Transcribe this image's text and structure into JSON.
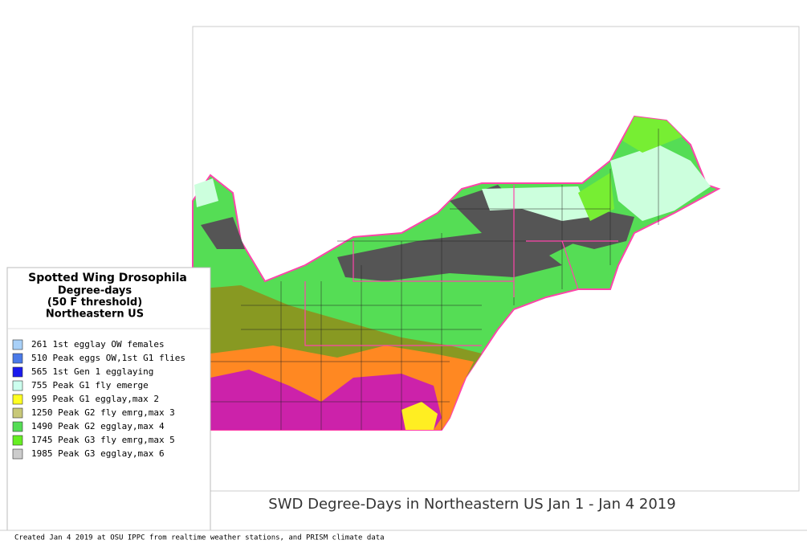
{
  "legend": {
    "title": "Spotted Wing Drosophila",
    "subtitle_lines": [
      "Degree-days",
      "(50 F threshold)",
      "Northeastern US"
    ],
    "items": [
      {
        "label": "261 1st egglay OW females",
        "color": "#a8d0f8"
      },
      {
        "label": "510 Peak eggs OW,1st G1 flies",
        "color": "#4a7ae8"
      },
      {
        "label": "565 1st Gen 1 egglaying",
        "color": "#1a1aee"
      },
      {
        "label": "755 Peak G1 fly emerge",
        "color": "#ccffee"
      },
      {
        "label": "995 Peak G1 egglay,max 2",
        "color": "#ffff22"
      },
      {
        "label": "1250 Peak G2 fly emrg,max 3",
        "color": "#c8c878"
      },
      {
        "label": "1490 Peak G2 egglay,max 4",
        "color": "#55dd55"
      },
      {
        "label": "1745 Peak G3 fly emrg,max 5",
        "color": "#66ee22"
      },
      {
        "label": "1985 Peak G3 egglay,max 6",
        "color": "#cccccc"
      }
    ]
  },
  "map": {
    "caption": "SWD Degree-Days in Northeastern US Jan 1 - Jan 4 2019"
  },
  "footer": "Created Jan 4 2019 at OSU IPPC from  realtime weather stations, and PRISM climate data"
}
